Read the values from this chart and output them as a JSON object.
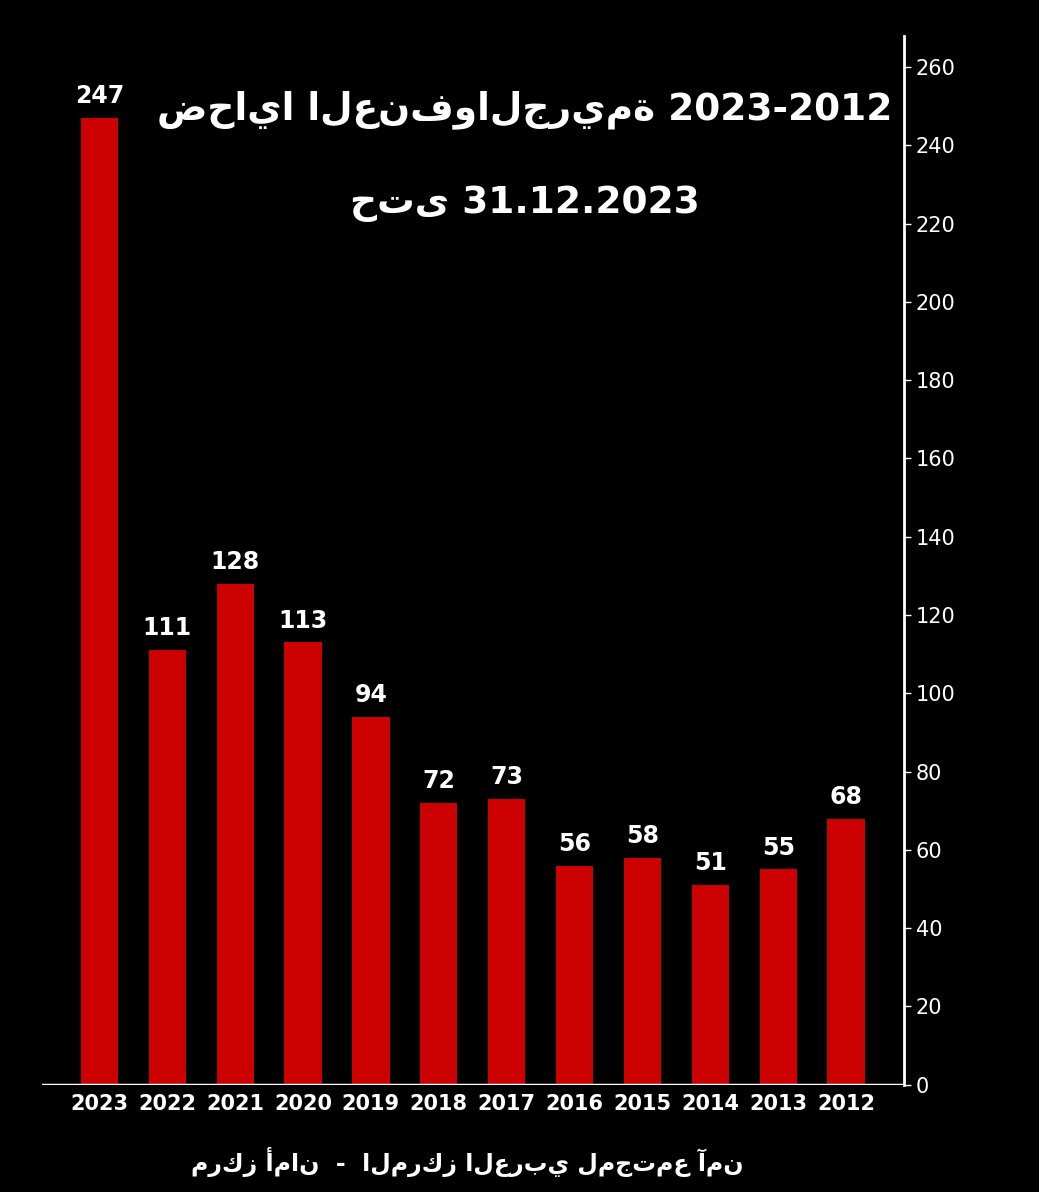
{
  "years": [
    "2023",
    "2022",
    "2021",
    "2020",
    "2019",
    "2018",
    "2017",
    "2016",
    "2015",
    "2014",
    "2013",
    "2012"
  ],
  "values": [
    247,
    111,
    128,
    113,
    94,
    72,
    73,
    56,
    58,
    51,
    55,
    68
  ],
  "bar_color": "#cc0000",
  "background_color": "#000000",
  "text_color": "#ffffff",
  "title_line1": "ضحايا العنفوالجريمة 2023-2012",
  "title_line2": "حتى 31.12.2023",
  "footer": "مركز أمان  -  المركز العربي لمجتمع آمن",
  "ylim": [
    0,
    268
  ],
  "yticks": [
    0,
    20,
    40,
    60,
    80,
    100,
    120,
    140,
    160,
    180,
    200,
    220,
    240,
    260
  ],
  "bar_width": 0.55,
  "figsize": [
    10.39,
    11.92
  ],
  "dpi": 100
}
